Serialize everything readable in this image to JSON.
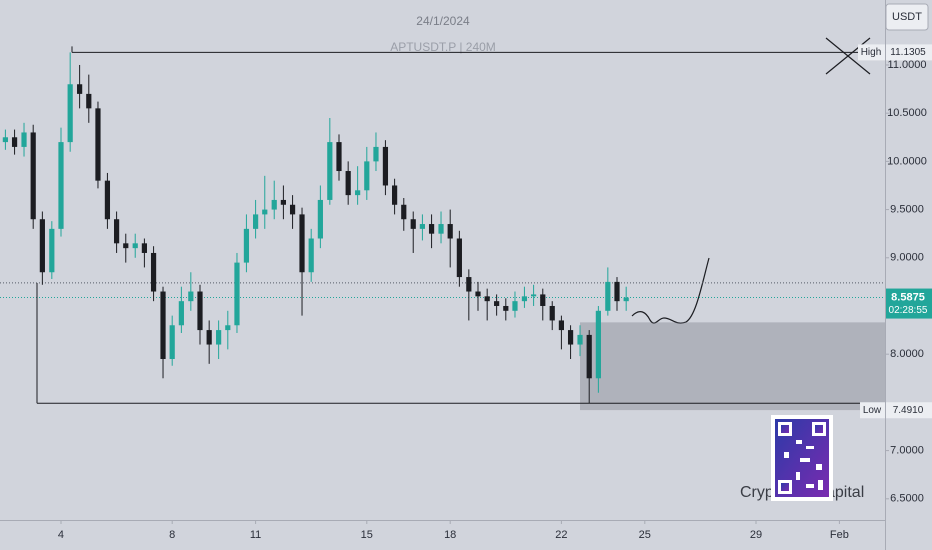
{
  "chart_data": {
    "type": "candlestick",
    "title": "24/1/2024",
    "subtitle": "APTUSDT.P | 240M",
    "currency": "USDT",
    "x": [
      2,
      2.33,
      2.67,
      3,
      3.33,
      3.67,
      4,
      4.33,
      4.67,
      5,
      5.33,
      5.67,
      6,
      6.33,
      6.67,
      7,
      7.33,
      7.67,
      8,
      8.33,
      8.67,
      9,
      9.33,
      9.67,
      10,
      10.33,
      10.67,
      11,
      11.33,
      11.67,
      12,
      12.33,
      12.67,
      13,
      13.33,
      13.67,
      14,
      14.33,
      14.67,
      15,
      15.33,
      15.67,
      16,
      16.33,
      16.67,
      17,
      17.33,
      17.67,
      18,
      18.33,
      18.67,
      19,
      19.33,
      19.67,
      20,
      20.33,
      20.67,
      21,
      21.33,
      21.67,
      22,
      22.33,
      22.67,
      23,
      23.33,
      23.67,
      24,
      24.33
    ],
    "open": [
      10.2,
      10.25,
      10.15,
      10.3,
      9.4,
      8.85,
      9.3,
      10.2,
      10.8,
      10.7,
      10.55,
      9.8,
      9.4,
      9.15,
      9.1,
      9.15,
      9.05,
      8.65,
      7.95,
      8.3,
      8.55,
      8.65,
      8.25,
      8.1,
      8.25,
      8.3,
      8.95,
      9.3,
      9.45,
      9.5,
      9.6,
      9.55,
      9.45,
      8.85,
      9.2,
      9.6,
      10.2,
      9.9,
      9.65,
      9.7,
      10.0,
      10.15,
      9.75,
      9.55,
      9.4,
      9.3,
      9.35,
      9.25,
      9.35,
      9.2,
      8.8,
      8.65,
      8.6,
      8.55,
      8.5,
      8.45,
      8.55,
      8.6,
      8.62,
      8.5,
      8.35,
      8.25,
      8.1,
      8.2,
      7.75,
      8.45,
      8.75,
      8.55
    ],
    "high": [
      10.33,
      10.33,
      10.4,
      10.38,
      9.48,
      9.38,
      10.35,
      11.1305,
      11.0,
      10.9,
      10.62,
      9.88,
      9.48,
      9.25,
      9.25,
      9.2,
      9.12,
      8.7,
      8.4,
      8.7,
      8.85,
      8.72,
      8.35,
      8.35,
      8.45,
      9.05,
      9.45,
      9.6,
      9.85,
      9.8,
      9.75,
      9.65,
      9.52,
      9.3,
      9.75,
      10.45,
      10.28,
      10.0,
      9.95,
      10.15,
      10.3,
      10.22,
      9.82,
      9.62,
      9.48,
      9.45,
      9.45,
      9.48,
      9.5,
      9.28,
      8.88,
      8.75,
      8.68,
      8.62,
      8.58,
      8.65,
      8.7,
      8.72,
      8.68,
      8.55,
      8.4,
      8.3,
      8.3,
      8.25,
      8.5,
      8.9,
      8.8,
      8.7
    ],
    "low": [
      10.12,
      10.07,
      10.05,
      9.3,
      8.72,
      8.78,
      9.22,
      10.1,
      10.55,
      10.4,
      9.72,
      9.3,
      9.05,
      8.95,
      9.0,
      8.9,
      8.55,
      7.75,
      7.88,
      8.22,
      8.45,
      8.1,
      7.9,
      7.95,
      8.05,
      8.22,
      8.85,
      9.2,
      9.3,
      9.4,
      9.4,
      9.3,
      8.4,
      8.75,
      9.1,
      9.55,
      9.8,
      9.55,
      9.55,
      9.6,
      9.9,
      9.65,
      9.45,
      9.28,
      9.05,
      9.18,
      9.1,
      9.15,
      8.9,
      8.7,
      8.35,
      8.45,
      8.35,
      8.4,
      8.35,
      8.38,
      8.48,
      8.5,
      8.35,
      8.25,
      8.05,
      7.95,
      7.98,
      7.491,
      7.6,
      8.4,
      8.45,
      8.45
    ],
    "close": [
      10.25,
      10.15,
      10.3,
      9.4,
      8.85,
      9.3,
      10.2,
      10.8,
      10.7,
      10.55,
      9.8,
      9.4,
      9.15,
      9.1,
      9.15,
      9.05,
      8.65,
      7.95,
      8.3,
      8.55,
      8.65,
      8.25,
      8.1,
      8.25,
      8.3,
      8.95,
      9.3,
      9.45,
      9.5,
      9.6,
      9.55,
      9.45,
      8.85,
      9.2,
      9.6,
      10.2,
      9.9,
      9.65,
      9.7,
      10.0,
      10.15,
      9.75,
      9.55,
      9.4,
      9.3,
      9.35,
      9.25,
      9.35,
      9.2,
      8.8,
      8.65,
      8.6,
      8.55,
      8.5,
      8.45,
      8.55,
      8.6,
      8.62,
      8.5,
      8.35,
      8.25,
      8.1,
      8.2,
      7.75,
      8.45,
      8.75,
      8.55,
      8.5875
    ],
    "up_color": "#22a69a",
    "down_color": "#1c1d22",
    "xlim": [
      1.806,
      33.64
    ],
    "xticks": [
      4,
      8,
      11,
      15,
      18,
      22,
      25,
      29,
      {
        "value": 32,
        "label": "Feb"
      }
    ],
    "ylim": [
      6.28,
      11.674
    ],
    "yticks": [
      {
        "value": 11,
        "label": "11.0000"
      },
      {
        "value": 10.5,
        "label": "10.5000"
      },
      {
        "value": 10,
        "label": "10.0000"
      },
      {
        "value": 9.5,
        "label": "9.5000"
      },
      {
        "value": 9,
        "label": "9.0000"
      },
      {
        "value": 8,
        "label": "8.0000"
      },
      {
        "value": 7,
        "label": "7.0000"
      },
      {
        "value": 6.5,
        "label": "6.5000"
      }
    ],
    "grid": false,
    "last_price": 8.5875,
    "countdown": "02:28:55",
    "reference_line": 8.74,
    "high_level": {
      "name": "High",
      "value": 11.1305
    },
    "low_level": {
      "name": "Low",
      "value": 7.491,
      "value_label": "7.4910"
    },
    "zone": [
      7.42,
      8.33
    ],
    "watermark": [
      "Cryp",
      "apital"
    ]
  }
}
